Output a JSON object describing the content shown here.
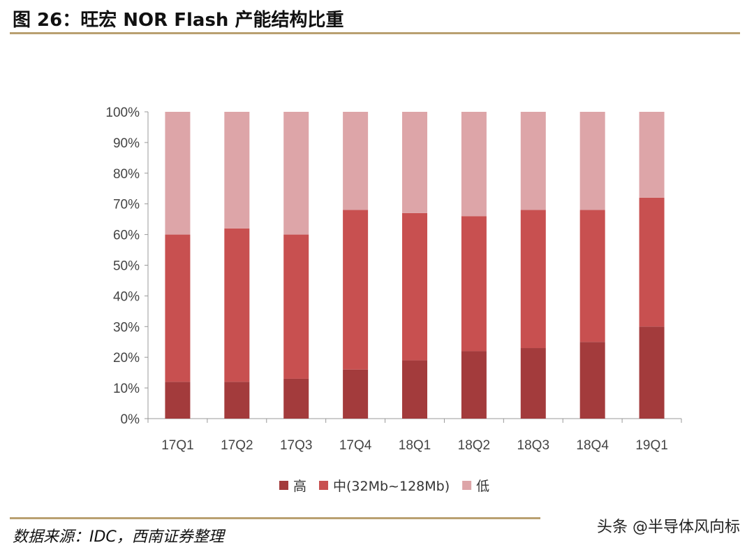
{
  "title": "图 26：旺宏 NOR Flash 产能结构比重",
  "source": "数据来源：IDC，西南证券整理",
  "credit": "头条 @半导体风向标",
  "chart_data": {
    "type": "bar",
    "stacked": true,
    "percent": true,
    "categories": [
      "17Q1",
      "17Q2",
      "17Q3",
      "17Q4",
      "18Q1",
      "18Q2",
      "18Q3",
      "18Q4",
      "19Q1"
    ],
    "series": [
      {
        "name": "高",
        "color": "#A33B3C",
        "values": [
          12,
          12,
          13,
          16,
          19,
          22,
          23,
          25,
          30
        ]
      },
      {
        "name": "中(32Mb~128Mb)",
        "color": "#C85050",
        "values": [
          48,
          50,
          47,
          52,
          48,
          44,
          45,
          43,
          42
        ]
      },
      {
        "name": "低",
        "color": "#DDA5A8",
        "values": [
          40,
          38,
          40,
          32,
          33,
          34,
          32,
          32,
          28
        ]
      }
    ],
    "ylim": [
      0,
      100
    ],
    "yticks": [
      "0%",
      "10%",
      "20%",
      "30%",
      "40%",
      "50%",
      "60%",
      "70%",
      "80%",
      "90%",
      "100%"
    ],
    "legend": "bottom",
    "grid": false
  }
}
